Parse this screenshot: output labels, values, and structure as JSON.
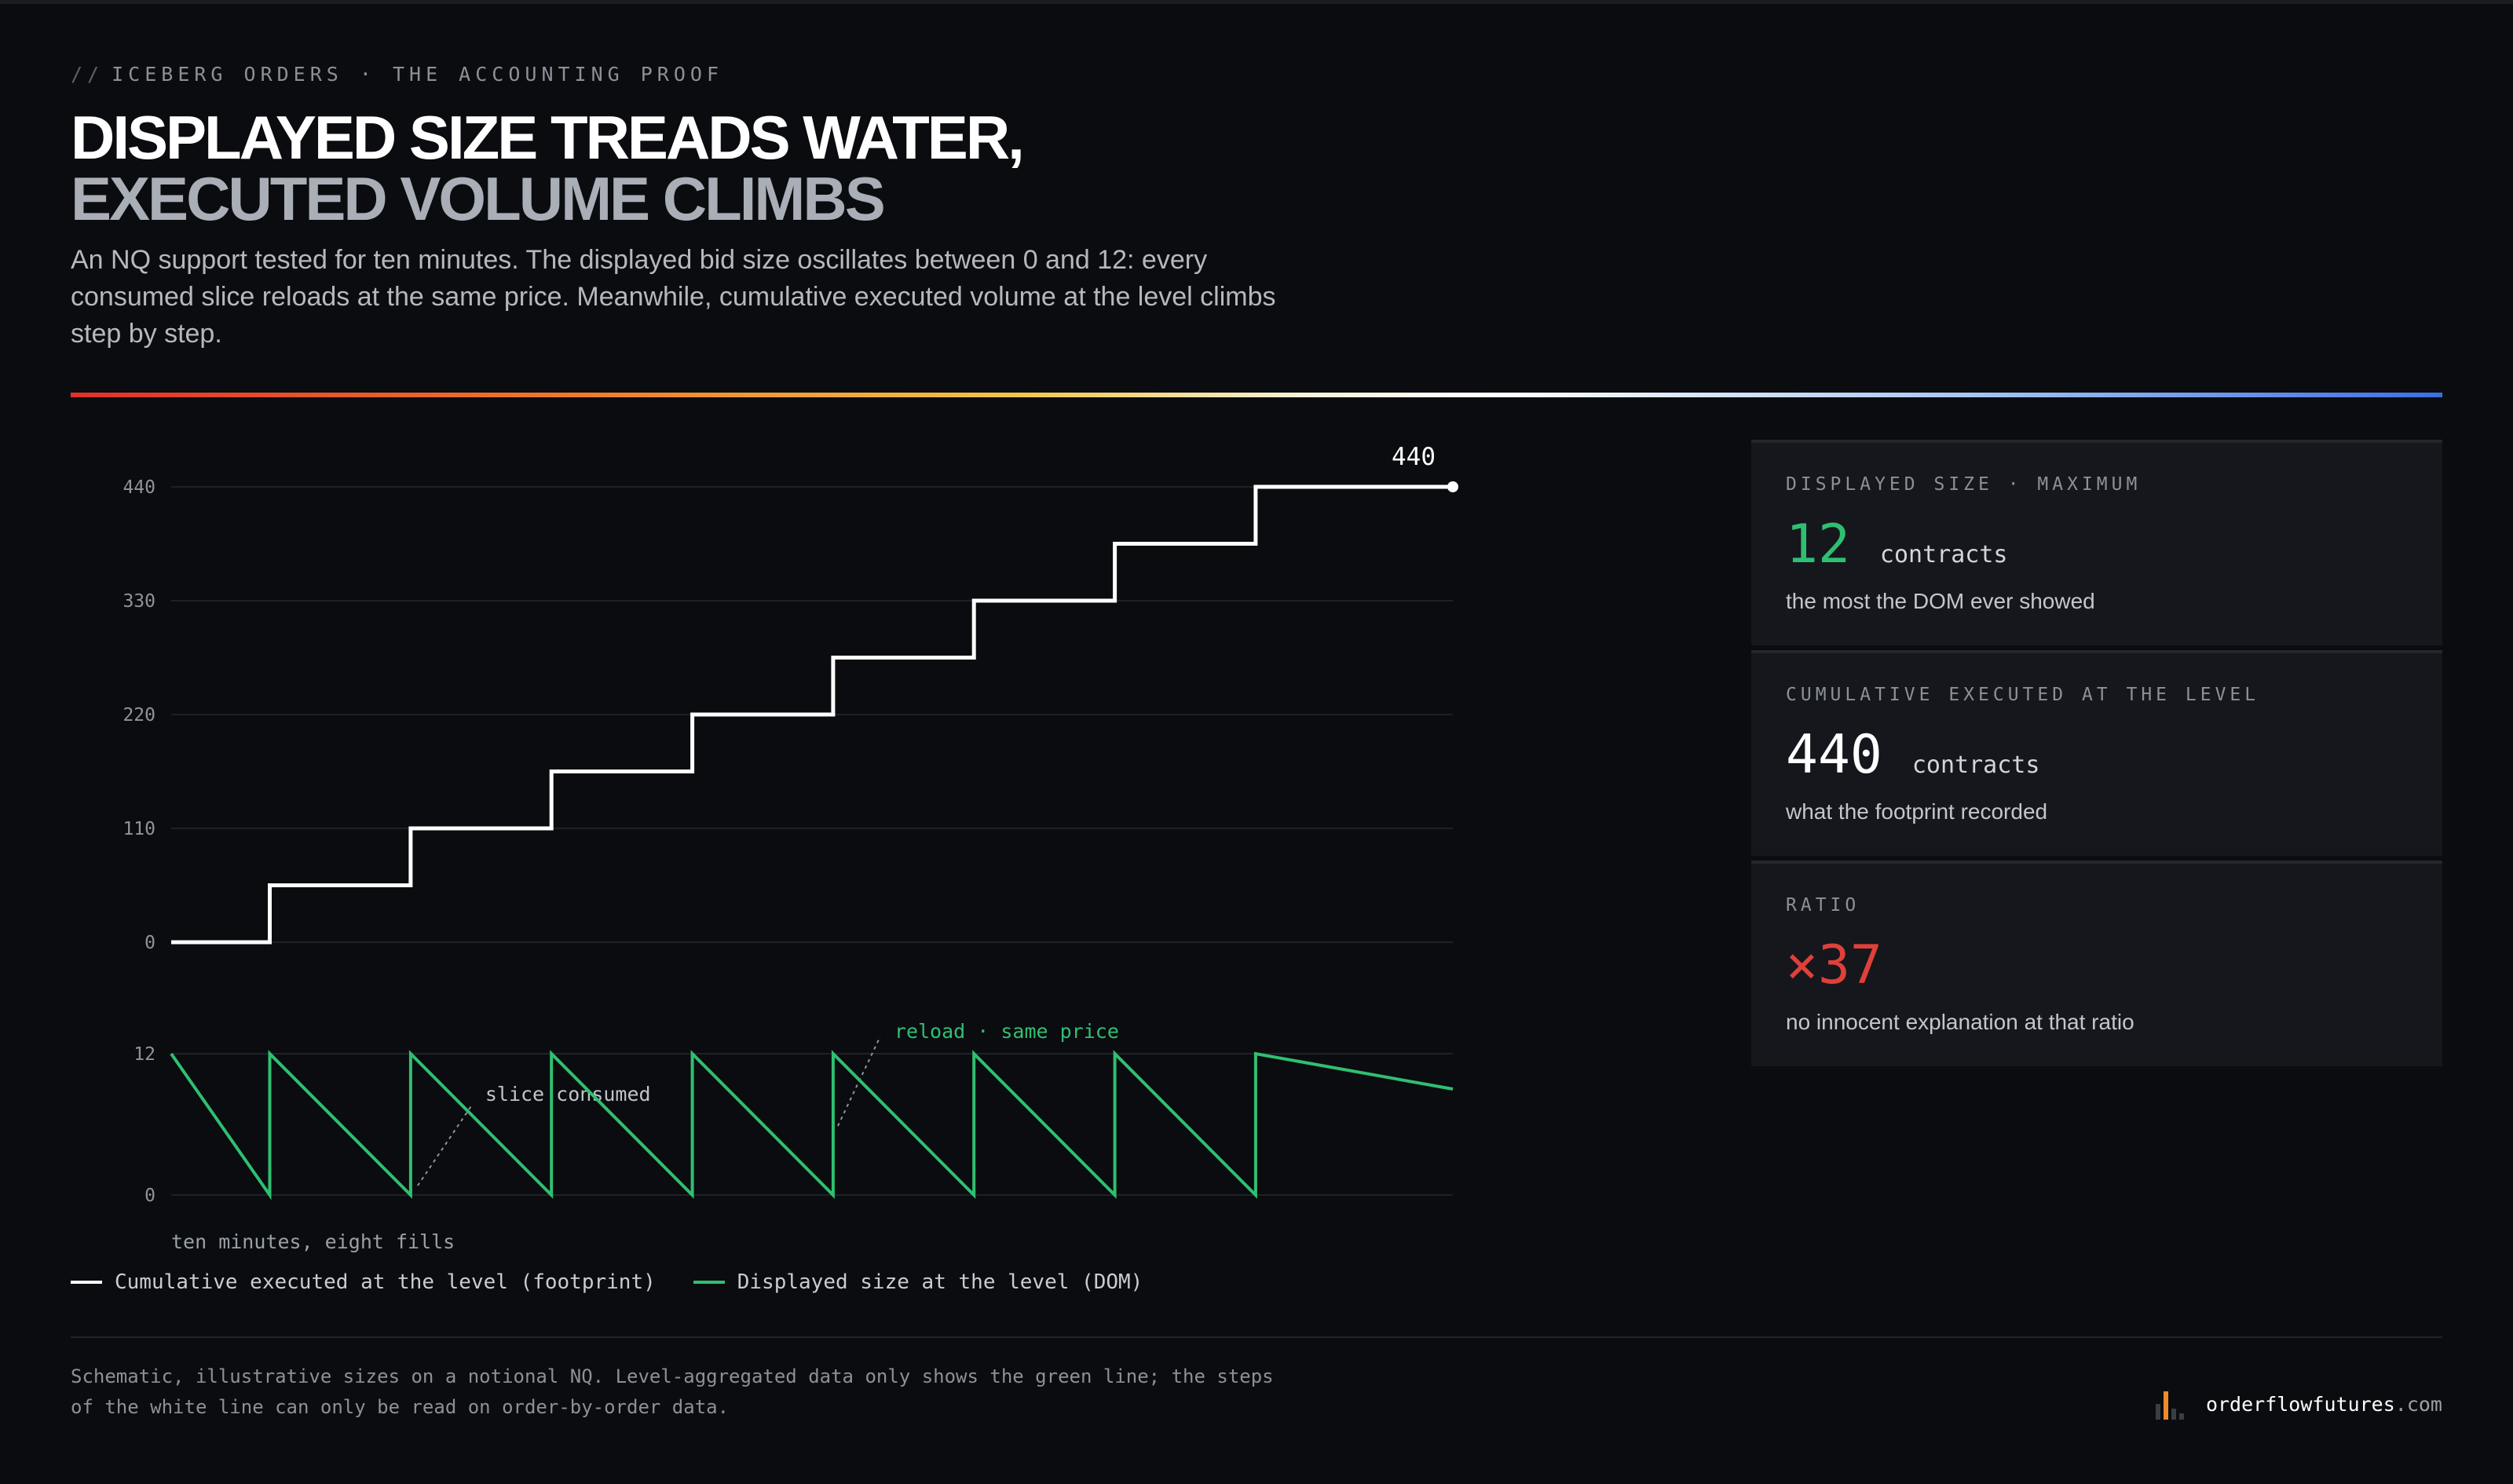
{
  "header": {
    "eyebrow_prefix": "//",
    "eyebrow": "ICEBERG ORDERS · THE ACCOUNTING PROOF",
    "title_line1": "DISPLAYED SIZE TREADS WATER,",
    "title_line2": "EXECUTED VOLUME CLIMBS",
    "subtitle": "An NQ support tested for ten minutes. The displayed bid size oscillates between 0 and 12: every consumed slice reloads at the same price. Meanwhile, cumulative executed volume at the level climbs step by step."
  },
  "colors": {
    "white_series": "#ffffff",
    "green_series": "#2fbf72",
    "red_accent": "#e0403a",
    "background": "#0b0c0f",
    "card": "#15171c"
  },
  "chart_data": [
    {
      "type": "line",
      "step": true,
      "series": [
        {
          "name": "Cumulative executed at the level (footprint)",
          "points": [
            [
              0,
              0
            ],
            [
              0.7,
              0
            ],
            [
              0.7,
              55
            ],
            [
              1.7,
              55
            ],
            [
              1.7,
              110
            ],
            [
              2.7,
              110
            ],
            [
              2.7,
              165
            ],
            [
              3.7,
              165
            ],
            [
              3.7,
              220
            ],
            [
              4.7,
              220
            ],
            [
              4.7,
              275
            ],
            [
              5.7,
              275
            ],
            [
              5.7,
              330
            ],
            [
              6.7,
              330
            ],
            [
              6.7,
              385
            ],
            [
              7.7,
              385
            ],
            [
              7.7,
              440
            ],
            [
              9.1,
              440
            ]
          ]
        }
      ],
      "y_ticks": [
        0,
        110,
        220,
        330,
        440
      ],
      "ylim": [
        0,
        440
      ],
      "xlim": [
        0,
        9.1
      ],
      "end_label": "440",
      "grid": true
    },
    {
      "type": "line",
      "series": [
        {
          "name": "Displayed size at the level (DOM)",
          "points": [
            [
              0,
              12
            ],
            [
              0.7,
              0
            ],
            [
              0.7,
              12
            ],
            [
              1.7,
              0
            ],
            [
              1.7,
              12
            ],
            [
              2.7,
              0
            ],
            [
              2.7,
              12
            ],
            [
              3.7,
              0
            ],
            [
              3.7,
              12
            ],
            [
              4.7,
              0
            ],
            [
              4.7,
              12
            ],
            [
              5.7,
              0
            ],
            [
              5.7,
              12
            ],
            [
              6.7,
              0
            ],
            [
              6.7,
              12
            ],
            [
              7.7,
              0
            ],
            [
              7.7,
              12
            ],
            [
              9.1,
              9
            ]
          ]
        }
      ],
      "y_ticks": [
        0,
        12
      ],
      "ylim": [
        0,
        12
      ],
      "xlim": [
        0,
        9.1
      ],
      "xlabel": "ten minutes, eight fills",
      "annotations": [
        {
          "text": "slice consumed",
          "x": 1.75,
          "y": 0.8,
          "color": "grey"
        },
        {
          "text": "reload · same price",
          "x": 4.7,
          "y": 6,
          "color": "green"
        }
      ],
      "grid": true
    }
  ],
  "legend": {
    "items": [
      {
        "label": "Cumulative executed at the level (footprint)",
        "color": "#ffffff"
      },
      {
        "label": "Displayed size at the level (DOM)",
        "color": "#2fbf72"
      }
    ]
  },
  "cards": [
    {
      "label": "DISPLAYED SIZE · MAXIMUM",
      "value": "12",
      "unit": "contracts",
      "note": "the most the DOM ever showed",
      "color": "#2fbf72"
    },
    {
      "label": "CUMULATIVE EXECUTED AT THE LEVEL",
      "value": "440",
      "unit": "contracts",
      "note": "what the footprint recorded",
      "color": "#ffffff"
    },
    {
      "label": "RATIO",
      "value": "×37",
      "unit": "",
      "note": "no innocent explanation at that ratio",
      "color": "#e0403a"
    }
  ],
  "footer": {
    "footnote": "Schematic, illustrative sizes on a notional NQ. Level-aggregated data only shows the green line; the steps of the white line can only be read on order-by-order data.",
    "brand": "orderflowfutures",
    "brand_suffix": ".com"
  }
}
